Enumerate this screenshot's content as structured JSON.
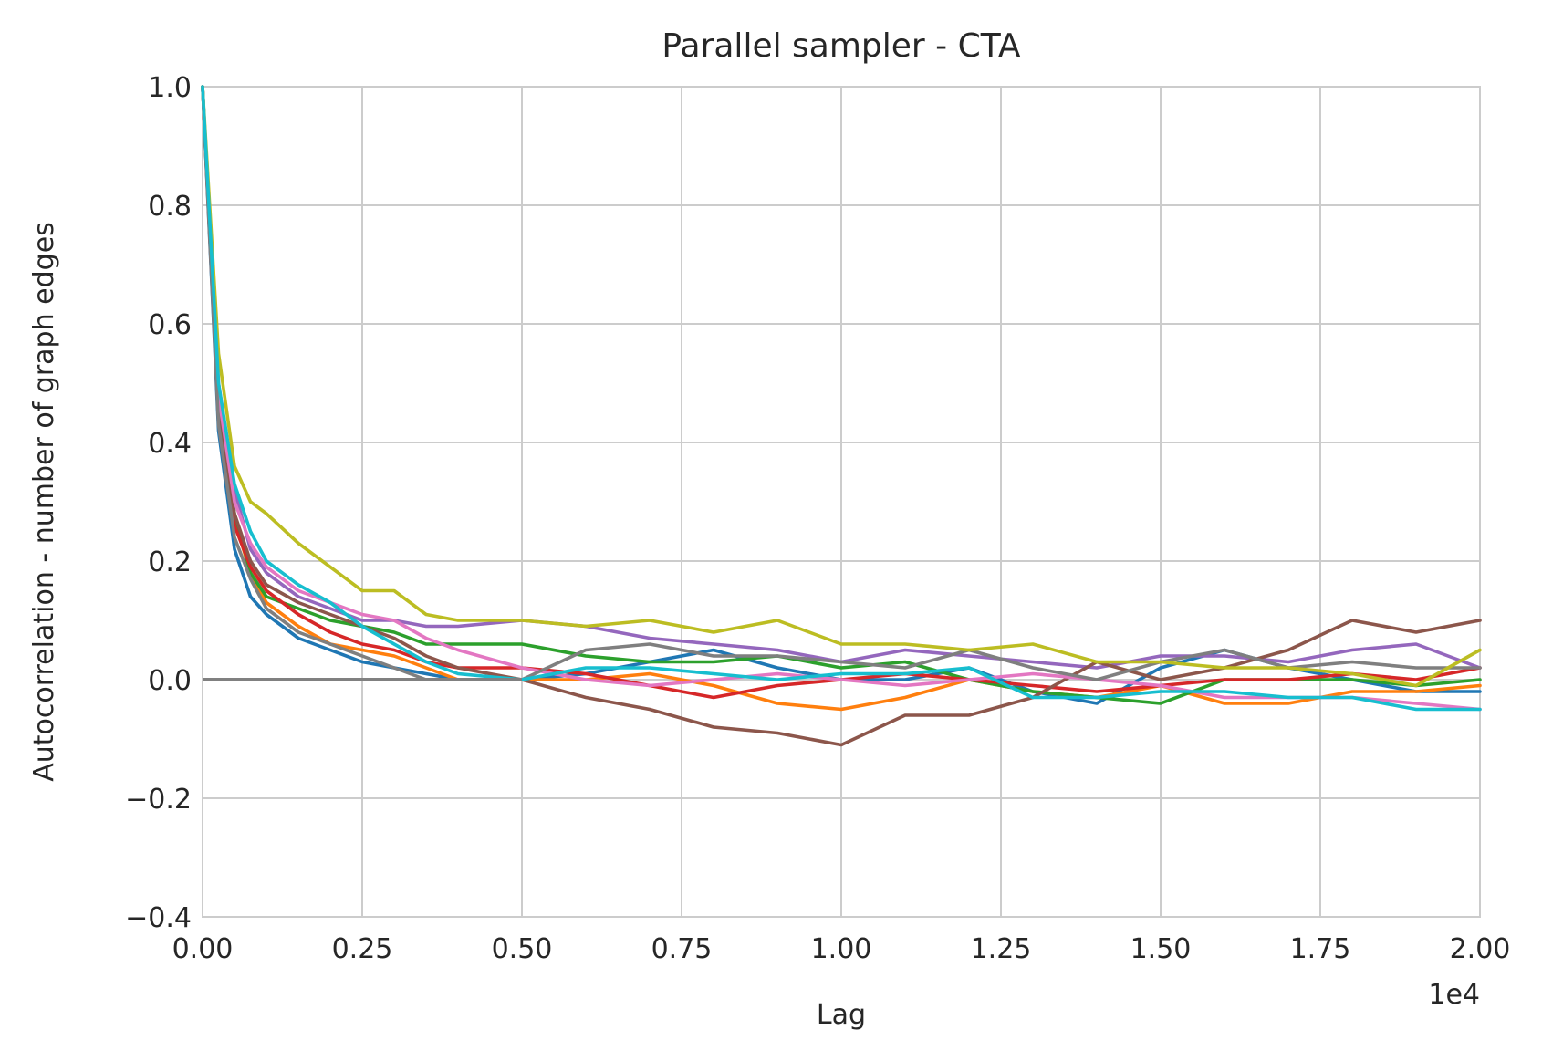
{
  "chart_data": {
    "type": "line",
    "title": "Parallel sampler - CTA",
    "xlabel": "Lag",
    "ylabel": "Autocorrelation - number of graph edges",
    "x_offset_text": "1e4",
    "xlim": [
      0,
      20000
    ],
    "ylim": [
      -0.4,
      1.0
    ],
    "xticks": [
      0,
      2500,
      5000,
      7500,
      10000,
      12500,
      15000,
      17500,
      20000
    ],
    "xtick_labels": [
      "0.00",
      "0.25",
      "0.50",
      "0.75",
      "1.00",
      "1.25",
      "1.50",
      "1.75",
      "2.00"
    ],
    "yticks": [
      -0.4,
      -0.2,
      0.0,
      0.2,
      0.4,
      0.6,
      0.8,
      1.0
    ],
    "ytick_labels": [
      "−0.4",
      "−0.2",
      "0.0",
      "0.2",
      "0.4",
      "0.6",
      "0.8",
      "1.0"
    ],
    "grid": true,
    "legend": "none",
    "reference_line": {
      "y": 0.0,
      "color": "#808080"
    },
    "series": [
      {
        "color": "#1f77b4",
        "x": [
          0,
          250,
          500,
          750,
          1000,
          1500,
          2000,
          2500,
          3000,
          3500,
          4000,
          5000,
          6000,
          7000,
          8000,
          9000,
          10000,
          11000,
          12000,
          13000,
          14000,
          15000,
          16000,
          17000,
          18000,
          19000,
          20000
        ],
        "y": [
          1.0,
          0.42,
          0.22,
          0.14,
          0.11,
          0.07,
          0.05,
          0.03,
          0.02,
          0.01,
          0.0,
          0.0,
          0.01,
          0.03,
          0.05,
          0.02,
          0.0,
          0.0,
          0.02,
          -0.02,
          -0.04,
          0.02,
          0.05,
          0.02,
          0.0,
          -0.02,
          -0.02
        ]
      },
      {
        "color": "#ff7f0e",
        "x": [
          0,
          250,
          500,
          750,
          1000,
          1500,
          2000,
          2500,
          3000,
          3500,
          4000,
          5000,
          6000,
          7000,
          8000,
          9000,
          10000,
          11000,
          12000,
          13000,
          14000,
          15000,
          16000,
          17000,
          18000,
          19000,
          20000
        ],
        "y": [
          1.0,
          0.45,
          0.27,
          0.18,
          0.13,
          0.09,
          0.06,
          0.05,
          0.04,
          0.02,
          0.0,
          0.0,
          0.0,
          0.01,
          -0.01,
          -0.04,
          -0.05,
          -0.03,
          0.0,
          -0.02,
          -0.03,
          -0.01,
          -0.04,
          -0.04,
          -0.02,
          -0.02,
          -0.01
        ]
      },
      {
        "color": "#2ca02c",
        "x": [
          0,
          250,
          500,
          750,
          1000,
          1500,
          2000,
          2500,
          3000,
          3500,
          4000,
          5000,
          6000,
          7000,
          8000,
          9000,
          10000,
          11000,
          12000,
          13000,
          14000,
          15000,
          16000,
          17000,
          18000,
          19000,
          20000
        ],
        "y": [
          1.0,
          0.46,
          0.28,
          0.18,
          0.14,
          0.12,
          0.1,
          0.09,
          0.08,
          0.06,
          0.06,
          0.06,
          0.04,
          0.03,
          0.03,
          0.04,
          0.02,
          0.03,
          0.0,
          -0.02,
          -0.03,
          -0.04,
          0.0,
          0.0,
          0.0,
          -0.01,
          0.0
        ]
      },
      {
        "color": "#d62728",
        "x": [
          0,
          250,
          500,
          750,
          1000,
          1500,
          2000,
          2500,
          3000,
          3500,
          4000,
          5000,
          6000,
          7000,
          8000,
          9000,
          10000,
          11000,
          12000,
          13000,
          14000,
          15000,
          16000,
          17000,
          18000,
          19000,
          20000
        ],
        "y": [
          1.0,
          0.44,
          0.26,
          0.19,
          0.15,
          0.11,
          0.08,
          0.06,
          0.05,
          0.03,
          0.02,
          0.02,
          0.01,
          -0.01,
          -0.03,
          -0.01,
          0.0,
          0.01,
          0.0,
          -0.01,
          -0.02,
          -0.01,
          0.0,
          0.0,
          0.01,
          0.0,
          0.02
        ]
      },
      {
        "color": "#9467bd",
        "x": [
          0,
          250,
          500,
          750,
          1000,
          1500,
          2000,
          2500,
          3000,
          3500,
          4000,
          5000,
          6000,
          7000,
          8000,
          9000,
          10000,
          11000,
          12000,
          13000,
          14000,
          15000,
          16000,
          17000,
          18000,
          19000,
          20000
        ],
        "y": [
          1.0,
          0.5,
          0.32,
          0.22,
          0.18,
          0.14,
          0.12,
          0.1,
          0.1,
          0.09,
          0.09,
          0.1,
          0.09,
          0.07,
          0.06,
          0.05,
          0.03,
          0.05,
          0.04,
          0.03,
          0.02,
          0.04,
          0.04,
          0.03,
          0.05,
          0.06,
          0.02
        ]
      },
      {
        "color": "#8c564b",
        "x": [
          0,
          250,
          500,
          750,
          1000,
          1500,
          2000,
          2500,
          3000,
          3500,
          4000,
          5000,
          6000,
          7000,
          8000,
          9000,
          10000,
          11000,
          12000,
          13000,
          14000,
          15000,
          16000,
          17000,
          18000,
          19000,
          20000
        ],
        "y": [
          1.0,
          0.45,
          0.28,
          0.2,
          0.16,
          0.13,
          0.11,
          0.09,
          0.07,
          0.04,
          0.02,
          0.0,
          -0.03,
          -0.05,
          -0.08,
          -0.09,
          -0.11,
          -0.06,
          -0.06,
          -0.03,
          0.03,
          0.0,
          0.02,
          0.05,
          0.1,
          0.08,
          0.1
        ]
      },
      {
        "color": "#e377c2",
        "x": [
          0,
          250,
          500,
          750,
          1000,
          1500,
          2000,
          2500,
          3000,
          3500,
          4000,
          5000,
          6000,
          7000,
          8000,
          9000,
          10000,
          11000,
          12000,
          13000,
          14000,
          15000,
          16000,
          17000,
          18000,
          19000,
          20000
        ],
        "y": [
          1.0,
          0.48,
          0.3,
          0.23,
          0.19,
          0.15,
          0.13,
          0.11,
          0.1,
          0.07,
          0.05,
          0.02,
          0.0,
          -0.01,
          0.0,
          0.01,
          0.0,
          -0.01,
          0.0,
          0.01,
          0.0,
          -0.01,
          -0.03,
          -0.03,
          -0.03,
          -0.04,
          -0.05
        ]
      },
      {
        "color": "#7f7f7f",
        "x": [
          0,
          250,
          500,
          750,
          1000,
          1500,
          2000,
          2500,
          3000,
          3500,
          4000,
          5000,
          6000,
          7000,
          8000,
          9000,
          10000,
          11000,
          12000,
          13000,
          14000,
          15000,
          16000,
          17000,
          18000,
          19000,
          20000
        ],
        "y": [
          1.0,
          0.43,
          0.24,
          0.17,
          0.12,
          0.08,
          0.06,
          0.04,
          0.02,
          0.0,
          0.0,
          0.0,
          0.05,
          0.06,
          0.04,
          0.04,
          0.03,
          0.02,
          0.05,
          0.02,
          0.0,
          0.03,
          0.05,
          0.02,
          0.03,
          0.02,
          0.02
        ]
      },
      {
        "color": "#bcbd22",
        "x": [
          0,
          250,
          500,
          750,
          1000,
          1500,
          2000,
          2500,
          3000,
          3500,
          4000,
          5000,
          6000,
          7000,
          8000,
          9000,
          10000,
          11000,
          12000,
          13000,
          14000,
          15000,
          16000,
          17000,
          18000,
          19000,
          20000
        ],
        "y": [
          1.0,
          0.55,
          0.36,
          0.3,
          0.28,
          0.23,
          0.19,
          0.15,
          0.15,
          0.11,
          0.1,
          0.1,
          0.09,
          0.1,
          0.08,
          0.1,
          0.06,
          0.06,
          0.05,
          0.06,
          0.03,
          0.03,
          0.02,
          0.02,
          0.01,
          -0.01,
          0.05
        ]
      },
      {
        "color": "#17becf",
        "x": [
          0,
          250,
          500,
          750,
          1000,
          1500,
          2000,
          2500,
          3000,
          3500,
          4000,
          5000,
          6000,
          7000,
          8000,
          9000,
          10000,
          11000,
          12000,
          13000,
          14000,
          15000,
          16000,
          17000,
          18000,
          19000,
          20000
        ],
        "y": [
          1.0,
          0.5,
          0.33,
          0.25,
          0.2,
          0.16,
          0.13,
          0.09,
          0.06,
          0.03,
          0.01,
          0.0,
          0.02,
          0.02,
          0.01,
          0.0,
          0.01,
          0.01,
          0.02,
          -0.03,
          -0.03,
          -0.02,
          -0.02,
          -0.03,
          -0.03,
          -0.05,
          -0.05
        ]
      }
    ]
  }
}
